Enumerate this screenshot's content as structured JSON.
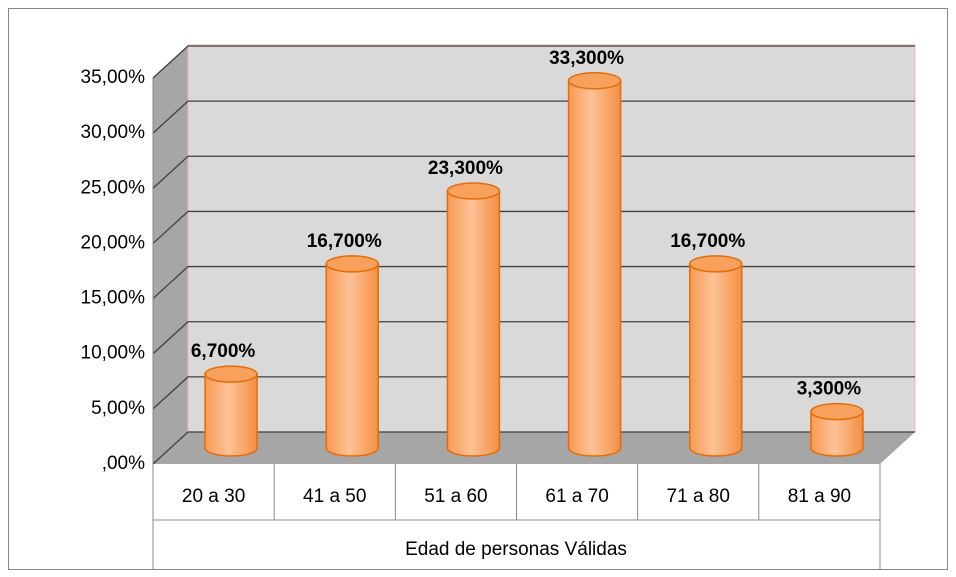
{
  "chart_data": {
    "type": "bar",
    "categories": [
      "20 a 30",
      "41 a 50",
      "51 a 60",
      "61 a 70",
      "71 a 80",
      "81 a 90"
    ],
    "values": [
      6.7,
      16.7,
      23.3,
      33.3,
      16.7,
      3.3
    ],
    "value_labels": [
      "6,700%",
      "16,700%",
      "23,300%",
      "33,300%",
      "16,700%",
      "3,300%"
    ],
    "color": "#fbb27a",
    "x_label": "Edad de personas Válidas",
    "ylim": [
      0,
      35
    ],
    "yticks": [
      {
        "value": 0,
        "label": ",00%"
      },
      {
        "value": 5,
        "label": "5,00%"
      },
      {
        "value": 10,
        "label": "10,00%"
      },
      {
        "value": 15,
        "label": "15,00%"
      },
      {
        "value": 20,
        "label": "20,00%"
      },
      {
        "value": 25,
        "label": "25,00%"
      },
      {
        "value": 30,
        "label": "30,00%"
      },
      {
        "value": 35,
        "label": "35,00%"
      }
    ],
    "grid": true
  }
}
